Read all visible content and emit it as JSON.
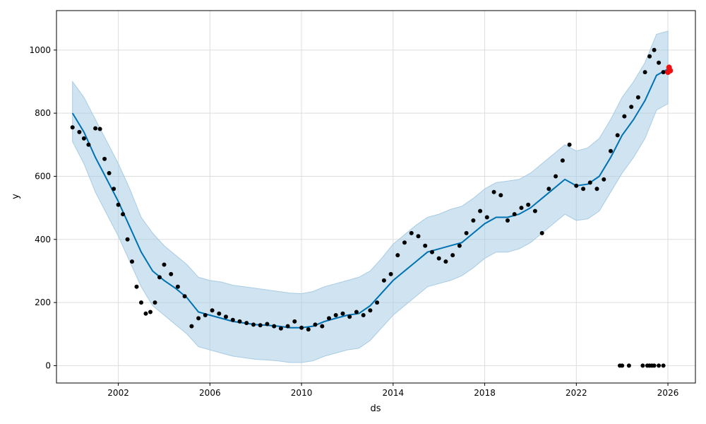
{
  "chart_data": {
    "type": "line",
    "title": "",
    "xlabel": "ds",
    "ylabel": "y",
    "xlim": [
      1999.3,
      2027.2
    ],
    "ylim": [
      -55,
      1125
    ],
    "x_ticks": [
      2002,
      2006,
      2010,
      2014,
      2018,
      2022,
      2026
    ],
    "y_ticks": [
      0,
      200,
      400,
      600,
      800,
      1000
    ],
    "grid": true,
    "colors": {
      "trend": "#0072b2",
      "band": "#a8cce4",
      "points": "#000000",
      "forecast_points": "#ee1111",
      "grid": "#dddddd"
    },
    "series": [
      {
        "kind": "yhat",
        "x": [
          2000.0,
          2000.5,
          2001.0,
          2001.5,
          2002.0,
          2002.5,
          2003.0,
          2003.5,
          2004.0,
          2004.5,
          2005.0,
          2005.5,
          2006.0,
          2006.5,
          2007.0,
          2007.5,
          2008.0,
          2008.5,
          2009.0,
          2009.5,
          2010.0,
          2010.5,
          2011.0,
          2011.5,
          2012.0,
          2012.5,
          2013.0,
          2013.5,
          2014.0,
          2014.5,
          2015.0,
          2015.5,
          2016.0,
          2016.5,
          2017.0,
          2017.5,
          2018.0,
          2018.5,
          2019.0,
          2019.5,
          2020.0,
          2020.5,
          2021.0,
          2021.5,
          2022.0,
          2022.5,
          2023.0,
          2023.5,
          2024.0,
          2024.5,
          2025.0,
          2025.5,
          2026.0
        ],
        "y": [
          800,
          740,
          660,
          590,
          520,
          440,
          360,
          300,
          270,
          245,
          215,
          170,
          160,
          150,
          140,
          135,
          130,
          128,
          125,
          120,
          120,
          125,
          140,
          150,
          160,
          165,
          190,
          230,
          270,
          300,
          330,
          360,
          370,
          380,
          390,
          420,
          450,
          470,
          470,
          480,
          500,
          530,
          560,
          590,
          570,
          575,
          600,
          660,
          730,
          780,
          840,
          920,
          940
        ]
      },
      {
        "kind": "band_upper",
        "x": [
          2000.0,
          2000.5,
          2001.0,
          2001.5,
          2002.0,
          2002.5,
          2003.0,
          2003.5,
          2004.0,
          2004.5,
          2005.0,
          2005.5,
          2006.0,
          2006.5,
          2007.0,
          2007.5,
          2008.0,
          2008.5,
          2009.0,
          2009.5,
          2010.0,
          2010.5,
          2011.0,
          2011.5,
          2012.0,
          2012.5,
          2013.0,
          2013.5,
          2014.0,
          2014.5,
          2015.0,
          2015.5,
          2016.0,
          2016.5,
          2017.0,
          2017.5,
          2018.0,
          2018.5,
          2019.0,
          2019.5,
          2020.0,
          2020.5,
          2021.0,
          2021.5,
          2022.0,
          2022.5,
          2023.0,
          2023.5,
          2024.0,
          2024.5,
          2025.0,
          2025.5,
          2026.0
        ],
        "y": [
          900,
          850,
          780,
          710,
          640,
          560,
          470,
          420,
          380,
          350,
          320,
          280,
          270,
          265,
          255,
          250,
          245,
          240,
          235,
          230,
          228,
          235,
          250,
          260,
          270,
          280,
          300,
          340,
          385,
          415,
          445,
          470,
          480,
          495,
          505,
          530,
          560,
          580,
          585,
          590,
          610,
          640,
          670,
          700,
          680,
          690,
          720,
          780,
          850,
          900,
          960,
          1050,
          1060
        ]
      },
      {
        "kind": "band_lower",
        "x": [
          2000.0,
          2000.5,
          2001.0,
          2001.5,
          2002.0,
          2002.5,
          2003.0,
          2003.5,
          2004.0,
          2004.5,
          2005.0,
          2005.5,
          2006.0,
          2006.5,
          2007.0,
          2007.5,
          2008.0,
          2008.5,
          2009.0,
          2009.5,
          2010.0,
          2010.5,
          2011.0,
          2011.5,
          2012.0,
          2012.5,
          2013.0,
          2013.5,
          2014.0,
          2014.5,
          2015.0,
          2015.5,
          2016.0,
          2016.5,
          2017.0,
          2017.5,
          2018.0,
          2018.5,
          2019.0,
          2019.5,
          2020.0,
          2020.5,
          2021.0,
          2021.5,
          2022.0,
          2022.5,
          2023.0,
          2023.5,
          2024.0,
          2024.5,
          2025.0,
          2025.5,
          2026.0
        ],
        "y": [
          710,
          640,
          550,
          480,
          410,
          330,
          250,
          190,
          160,
          130,
          100,
          60,
          50,
          40,
          30,
          25,
          20,
          18,
          15,
          10,
          10,
          15,
          30,
          40,
          50,
          55,
          80,
          120,
          160,
          190,
          220,
          250,
          260,
          270,
          285,
          310,
          340,
          360,
          360,
          370,
          390,
          420,
          450,
          480,
          460,
          465,
          490,
          550,
          610,
          660,
          720,
          810,
          830
        ]
      },
      {
        "kind": "observed",
        "x": [
          2000.0,
          2000.3,
          2000.5,
          2000.7,
          2001.0,
          2001.2,
          2001.4,
          2001.6,
          2001.8,
          2002.0,
          2002.2,
          2002.4,
          2002.6,
          2002.8,
          2003.0,
          2003.2,
          2003.4,
          2003.6,
          2003.8,
          2004.0,
          2004.3,
          2004.6,
          2004.9,
          2005.2,
          2005.5,
          2005.8,
          2006.1,
          2006.4,
          2006.7,
          2007.0,
          2007.3,
          2007.6,
          2007.9,
          2008.2,
          2008.5,
          2008.8,
          2009.1,
          2009.4,
          2009.7,
          2010.0,
          2010.3,
          2010.6,
          2010.9,
          2011.2,
          2011.5,
          2011.8,
          2012.1,
          2012.4,
          2012.7,
          2013.0,
          2013.3,
          2013.6,
          2013.9,
          2014.2,
          2014.5,
          2014.8,
          2015.1,
          2015.4,
          2015.7,
          2016.0,
          2016.3,
          2016.6,
          2016.9,
          2017.2,
          2017.5,
          2017.8,
          2018.1,
          2018.4,
          2018.7,
          2019.0,
          2019.3,
          2019.6,
          2019.9,
          2020.2,
          2020.5,
          2020.8,
          2021.1,
          2021.4,
          2021.7,
          2022.0,
          2022.3,
          2022.6,
          2022.9,
          2023.2,
          2023.5,
          2023.8,
          2024.1,
          2024.4,
          2024.7,
          2025.0,
          2025.2,
          2025.4,
          2025.6,
          2025.8
        ],
        "y": [
          755,
          740,
          720,
          700,
          752,
          750,
          655,
          610,
          560,
          510,
          480,
          400,
          330,
          250,
          200,
          165,
          170,
          200,
          280,
          320,
          290,
          250,
          220,
          125,
          150,
          160,
          175,
          165,
          155,
          145,
          140,
          135,
          130,
          128,
          132,
          125,
          118,
          125,
          140,
          120,
          115,
          130,
          125,
          150,
          160,
          165,
          155,
          170,
          160,
          175,
          200,
          270,
          290,
          350,
          390,
          420,
          410,
          380,
          360,
          340,
          330,
          350,
          380,
          420,
          460,
          490,
          470,
          550,
          540,
          460,
          480,
          500,
          510,
          490,
          420,
          560,
          600,
          650,
          700,
          570,
          560,
          580,
          560,
          590,
          680,
          730,
          790,
          820,
          850,
          930,
          980,
          1000,
          960,
          930
        ]
      },
      {
        "kind": "observed_zero",
        "x": [
          2023.9,
          2024.0,
          2024.3,
          2024.9,
          2025.1,
          2025.2,
          2025.3,
          2025.4,
          2025.6,
          2025.8
        ],
        "y": [
          0,
          0,
          0,
          0,
          0,
          0,
          0,
          0,
          0,
          0
        ]
      },
      {
        "kind": "forecast",
        "x": [
          2026.0,
          2026.05,
          2026.1
        ],
        "y": [
          930,
          945,
          935
        ]
      }
    ]
  }
}
